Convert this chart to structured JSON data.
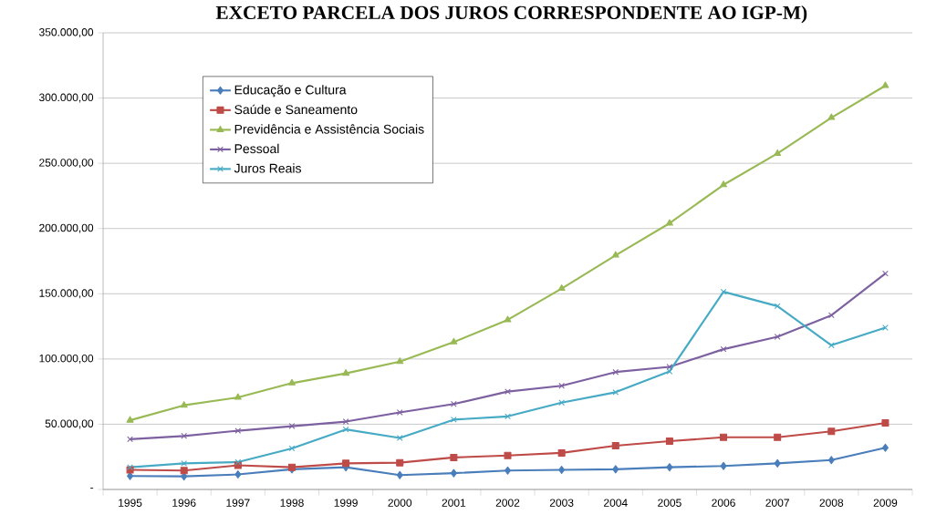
{
  "chart_data": {
    "type": "line",
    "title": "**EXCETO** PARCELA DOS JUROS CORRESPONDENTE AO IGP-M)",
    "categories": [
      "1995",
      "1996",
      "1997",
      "1998",
      "1999",
      "2000",
      "2001",
      "2002",
      "2003",
      "2004",
      "2005",
      "2006",
      "2007",
      "2008",
      "2009"
    ],
    "series": [
      {
        "name": "Educação e Cultura",
        "color": "#4a7ebb",
        "marker": "diamond",
        "values": [
          10300,
          10000,
          11500,
          15500,
          17000,
          11000,
          12500,
          14500,
          15000,
          15500,
          17000,
          18000,
          20000,
          22500,
          32000
        ]
      },
      {
        "name": "Saúde e Saneamento",
        "color": "#be4b48",
        "marker": "square",
        "values": [
          15000,
          14500,
          18500,
          17000,
          20000,
          20500,
          24500,
          26000,
          28000,
          33500,
          37000,
          40000,
          40000,
          44500,
          51000
        ]
      },
      {
        "name": "Previdência e Assistência Sociais",
        "color": "#98b954",
        "marker": "triangle",
        "values": [
          53000,
          64500,
          70500,
          81500,
          89000,
          98000,
          113000,
          130000,
          154000,
          179500,
          204000,
          233500,
          257500,
          285000,
          309500
        ]
      },
      {
        "name": "Pessoal",
        "color": "#7d60a0",
        "marker": "cross",
        "values": [
          38500,
          41000,
          45000,
          48500,
          52000,
          59000,
          65500,
          75000,
          79500,
          90000,
          94000,
          107500,
          117000,
          133500,
          165500
        ]
      },
      {
        "name": "Juros Reais",
        "color": "#46aac5",
        "marker": "cross",
        "values": [
          17000,
          20000,
          21000,
          31500,
          46000,
          39500,
          53500,
          56000,
          66500,
          74500,
          90500,
          151500,
          140500,
          110500,
          124000
        ]
      }
    ],
    "ylim": [
      0,
      350000
    ],
    "yticks": [
      {
        "value": 0,
        "label": "-"
      },
      {
        "value": 50000,
        "label": "50.000,00"
      },
      {
        "value": 100000,
        "label": "100.000,00"
      },
      {
        "value": 150000,
        "label": "150.000,00"
      },
      {
        "value": 200000,
        "label": "200.000,00"
      },
      {
        "value": 250000,
        "label": "250.000,00"
      },
      {
        "value": 300000,
        "label": "300.000,00"
      },
      {
        "value": 350000,
        "label": "350.000,00"
      }
    ],
    "grid": "y",
    "legend": "top left",
    "line_style": "solid"
  }
}
